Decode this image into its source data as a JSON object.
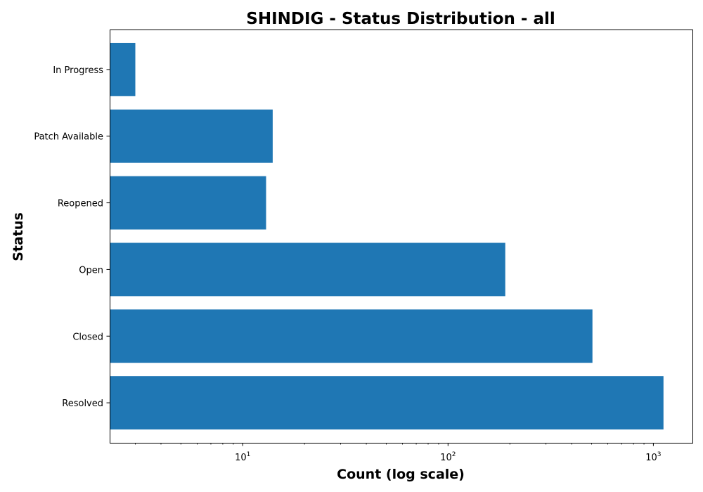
{
  "chart_data": {
    "type": "bar",
    "orientation": "horizontal",
    "title": "SHINDIG - Status Distribution - all",
    "xlabel": "Count (log scale)",
    "ylabel": "Status",
    "x_scale": "log",
    "xlim": [
      2.25,
      1550
    ],
    "x_major_ticks": [
      {
        "value": 10,
        "base": "10",
        "exp": "1"
      },
      {
        "value": 100,
        "base": "10",
        "exp": "2"
      },
      {
        "value": 1000,
        "base": "10",
        "exp": "3"
      }
    ],
    "categories": [
      "Resolved",
      "Closed",
      "Open",
      "Reopened",
      "Patch Available",
      "In Progress"
    ],
    "values": [
      1120,
      505,
      190,
      13,
      14,
      3
    ],
    "bar_color": "#1f77b4",
    "grid": false,
    "legend": "none"
  }
}
